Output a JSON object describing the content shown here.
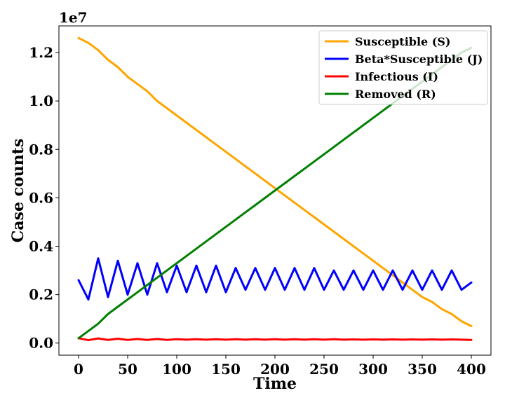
{
  "chart_data": {
    "type": "line",
    "xlabel": "Time",
    "ylabel": "Case counts",
    "y_offset_label": "1e7",
    "xlim": [
      -20,
      420
    ],
    "ylim": [
      -0.05,
      1.31
    ],
    "x_ticks": [
      0,
      50,
      100,
      150,
      200,
      250,
      300,
      350,
      400
    ],
    "y_ticks": [
      0.0,
      0.2,
      0.4,
      0.6,
      0.8,
      1.0,
      1.2
    ],
    "y_tick_labels": [
      "0.0",
      "0.2",
      "0.4",
      "0.6",
      "0.8",
      "1.0",
      "1.2"
    ],
    "grid": false,
    "legend_position": "upper right",
    "x": [
      0,
      10,
      20,
      30,
      40,
      50,
      60,
      70,
      80,
      90,
      100,
      110,
      120,
      130,
      140,
      150,
      160,
      170,
      180,
      190,
      200,
      210,
      220,
      230,
      240,
      250,
      260,
      270,
      280,
      290,
      300,
      310,
      320,
      330,
      340,
      350,
      360,
      370,
      380,
      390,
      400
    ],
    "series": [
      {
        "name": "Susceptible (S)",
        "color": "#ffa500",
        "values": [
          1.26,
          1.24,
          1.21,
          1.17,
          1.14,
          1.1,
          1.07,
          1.04,
          1.0,
          0.97,
          0.94,
          0.91,
          0.88,
          0.85,
          0.82,
          0.79,
          0.76,
          0.73,
          0.7,
          0.67,
          0.64,
          0.61,
          0.58,
          0.55,
          0.52,
          0.49,
          0.46,
          0.43,
          0.4,
          0.37,
          0.34,
          0.31,
          0.28,
          0.25,
          0.22,
          0.19,
          0.17,
          0.14,
          0.12,
          0.09,
          0.07
        ]
      },
      {
        "name": "Beta*Susceptible (J)",
        "color": "#0000ff",
        "values": [
          0.26,
          0.18,
          0.35,
          0.19,
          0.34,
          0.2,
          0.33,
          0.2,
          0.33,
          0.21,
          0.32,
          0.21,
          0.32,
          0.21,
          0.32,
          0.21,
          0.31,
          0.22,
          0.31,
          0.22,
          0.31,
          0.22,
          0.31,
          0.22,
          0.31,
          0.22,
          0.3,
          0.22,
          0.3,
          0.22,
          0.3,
          0.22,
          0.3,
          0.22,
          0.3,
          0.22,
          0.3,
          0.22,
          0.3,
          0.22,
          0.25
        ]
      },
      {
        "name": "Infectious (I)",
        "color": "#ff0000",
        "values": [
          0.02,
          0.012,
          0.019,
          0.013,
          0.018,
          0.013,
          0.017,
          0.013,
          0.017,
          0.013,
          0.016,
          0.014,
          0.016,
          0.014,
          0.016,
          0.014,
          0.016,
          0.014,
          0.016,
          0.014,
          0.016,
          0.014,
          0.016,
          0.014,
          0.016,
          0.014,
          0.016,
          0.014,
          0.015,
          0.014,
          0.015,
          0.014,
          0.015,
          0.014,
          0.015,
          0.014,
          0.015,
          0.014,
          0.015,
          0.014,
          0.013
        ]
      },
      {
        "name": "Removed (R)",
        "color": "#008000",
        "values": [
          0.02,
          0.05,
          0.08,
          0.12,
          0.15,
          0.18,
          0.21,
          0.24,
          0.27,
          0.3,
          0.33,
          0.36,
          0.39,
          0.42,
          0.45,
          0.48,
          0.51,
          0.54,
          0.57,
          0.6,
          0.63,
          0.66,
          0.69,
          0.72,
          0.75,
          0.78,
          0.81,
          0.84,
          0.87,
          0.9,
          0.93,
          0.96,
          0.99,
          1.02,
          1.05,
          1.08,
          1.11,
          1.14,
          1.17,
          1.2,
          1.22
        ]
      }
    ]
  }
}
